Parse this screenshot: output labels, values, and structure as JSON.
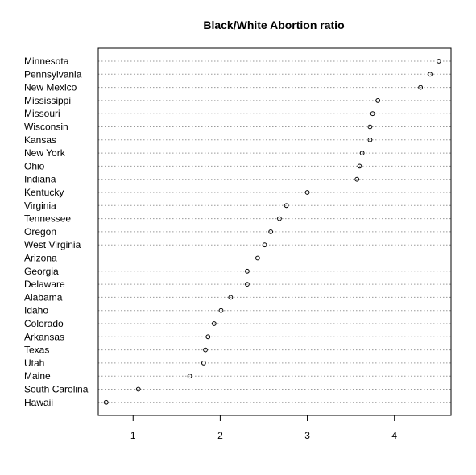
{
  "chart_data": {
    "type": "scatter",
    "title": "Black/White Abortion ratio",
    "xlabel": "",
    "ylabel": "",
    "xlim": [
      0.6,
      4.65
    ],
    "xticks": [
      1,
      2,
      3,
      4
    ],
    "grid": "dotted horizontal guide lines",
    "categories": [
      "Minnesota",
      "Pennsylvania",
      "New Mexico",
      "Mississippi",
      "Missouri",
      "Wisconsin",
      "Kansas",
      "New York",
      "Ohio",
      "Indiana",
      "Kentucky",
      "Virginia",
      "Tennessee",
      "Oregon",
      "West Virginia",
      "Arizona",
      "Georgia",
      "Delaware",
      "Alabama",
      "Idaho",
      "Colorado",
      "Arkansas",
      "Texas",
      "Utah",
      "Maine",
      "South Carolina",
      "Hawaii"
    ],
    "values": [
      4.51,
      4.41,
      4.3,
      3.81,
      3.75,
      3.72,
      3.72,
      3.63,
      3.6,
      3.57,
      3.0,
      2.76,
      2.68,
      2.58,
      2.51,
      2.43,
      2.31,
      2.31,
      2.12,
      2.01,
      1.93,
      1.86,
      1.83,
      1.81,
      1.65,
      1.06,
      0.69
    ]
  }
}
